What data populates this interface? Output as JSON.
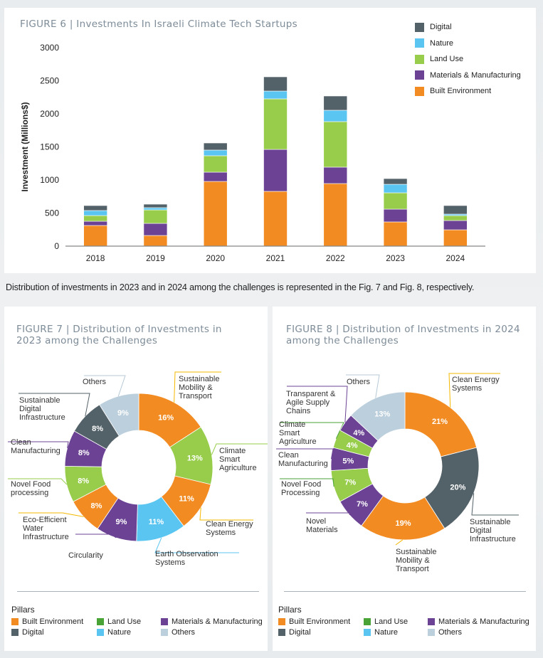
{
  "colors": {
    "digital": "#536168",
    "nature": "#5bc5f2",
    "land_use": "#97cd4a",
    "land_use_legend": "#4aa337",
    "materials": "#6c4394",
    "built": "#f28c22",
    "others": "#bccfdc"
  },
  "caption": "Distribution of investments in 2023 and in 2024 among the challenges is represented in the Fig. 7 and Fig. 8, respectively.",
  "chart_data": [
    {
      "type": "bar",
      "stacked": true,
      "title": "FIGURE  6 |  Investments In Israeli Climate Tech Startups",
      "xlabel": "",
      "ylabel": "Investment (Millions$)",
      "ylim": [
        0,
        3000
      ],
      "yticks": [
        0,
        500,
        1000,
        1500,
        2000,
        2500,
        3000
      ],
      "grid": false,
      "legend_position": "top-right",
      "categories": [
        "2018",
        "2019",
        "2020",
        "2021",
        "2022",
        "2023",
        "2024"
      ],
      "series": [
        {
          "name": "Built Environment",
          "color_key": "built",
          "values": [
            312,
            161,
            978,
            828,
            946,
            366,
            247
          ]
        },
        {
          "name": "Materials & Manufacturing",
          "color_key": "materials",
          "values": [
            64,
            183,
            140,
            634,
            248,
            193,
            140
          ]
        },
        {
          "name": "Land Use",
          "color_key": "land_use",
          "values": [
            86,
            204,
            248,
            764,
            688,
            247,
            75
          ]
        },
        {
          "name": "Nature",
          "color_key": "nature",
          "values": [
            76,
            33,
            86,
            118,
            172,
            129,
            22
          ]
        },
        {
          "name": "Digital",
          "color_key": "digital",
          "values": [
            75,
            53,
            107,
            215,
            215,
            86,
            129
          ]
        }
      ],
      "legend": [
        "Digital",
        "Nature",
        "Land Use",
        "Materials & Manufacturing",
        "Built Environment"
      ]
    },
    {
      "type": "pie",
      "donut": true,
      "title_line1": "FIGURE  7 | Distribution of Investments in",
      "title_line2": "2023 among the Challenges",
      "slices": [
        {
          "label": "Sustainable Mobility & Transport",
          "value": 16,
          "text": "16%",
          "color_key": "built"
        },
        {
          "label": "Climate Smart Agriculture",
          "value": 13,
          "text": "13%",
          "color_key": "land_use"
        },
        {
          "label": "Clean Energy Systems",
          "value": 11,
          "text": "11%",
          "color_key": "built"
        },
        {
          "label": "Earth Observation Systems",
          "value": 11,
          "text": "11%",
          "color_key": "nature"
        },
        {
          "label": "Circularity",
          "value": 9,
          "text": "9%",
          "color_key": "materials"
        },
        {
          "label": "Eco-Efficient Water Infrastructure",
          "value": 8,
          "text": "8%",
          "color_key": "built"
        },
        {
          "label": "Novel Food processing",
          "value": 8,
          "text": "8%",
          "color_key": "land_use"
        },
        {
          "label": "Clean Manufacturing",
          "value": 8,
          "text": "8%",
          "color_key": "materials"
        },
        {
          "label": "Sustainable Digital Infrastructure",
          "value": 8,
          "text": "8%",
          "color_key": "digital"
        },
        {
          "label": "Others",
          "value": 9,
          "text": "9%",
          "color_key": "others"
        }
      ]
    },
    {
      "type": "pie",
      "donut": true,
      "title_line1": "FIGURE  8 | Distribution of Investments in 2024",
      "title_line2": "among the Challenges",
      "slices": [
        {
          "label": "Clean Energy Systems",
          "value": 21,
          "text": "21%",
          "color_key": "built"
        },
        {
          "label": "Sustainable Digital Infrastructure",
          "value": 20,
          "text": "20%",
          "color_key": "digital"
        },
        {
          "label": "Sustainable Mobility & Transport",
          "value": 19,
          "text": "19%",
          "color_key": "built"
        },
        {
          "label": "Novel Materials",
          "value": 7,
          "text": "7%",
          "color_key": "materials"
        },
        {
          "label": "Novel Food Processing",
          "value": 7,
          "text": "7%",
          "color_key": "land_use"
        },
        {
          "label": "Clean Manufacturing",
          "value": 5,
          "text": "5%",
          "color_key": "materials"
        },
        {
          "label": "Climate Smart Agriculture",
          "value": 4,
          "text": "4%",
          "color_key": "land_use"
        },
        {
          "label": "Transparent & Agile Supply Chains",
          "value": 4,
          "text": "4%",
          "color_key": "materials"
        },
        {
          "label": "Others",
          "value": 13,
          "text": "13%",
          "color_key": "others"
        }
      ]
    }
  ],
  "pie_labels": {
    "f7": [
      [
        "Sustainable",
        "Mobility &",
        "Transport"
      ],
      [
        "Climate",
        "Smart",
        "Agriculture"
      ],
      [
        "Clean Energy",
        "Systems"
      ],
      [
        "Earth Observation",
        "Systems"
      ],
      [
        "Circularity"
      ],
      [
        "Eco-Efficient",
        "Water",
        "Infrastructure"
      ],
      [
        "Novel Food",
        "processing"
      ],
      [
        "Clean",
        "Manufacturing"
      ],
      [
        "Sustainable",
        "Digital",
        "Infrastructure"
      ],
      [
        "Others"
      ]
    ],
    "f8": [
      [
        "Clean Energy",
        "Systems"
      ],
      [
        "Sustainable",
        "Digital",
        "Infrastructure"
      ],
      [
        "Sustainable",
        "Mobility &",
        "Transport"
      ],
      [
        "Novel",
        "Materials"
      ],
      [
        "Novel Food",
        "Processing"
      ],
      [
        "Clean",
        "Manufacturing"
      ],
      [
        "Climate",
        "Smart",
        "Agriculture"
      ],
      [
        "Transparent &",
        "Agile Supply",
        "Chains"
      ],
      [
        "Others"
      ]
    ]
  },
  "pillars": {
    "title": "Pillars",
    "items": [
      {
        "label": "Built Environment",
        "color_key": "built"
      },
      {
        "label": "Land Use",
        "color_key": "land_use_legend"
      },
      {
        "label": "Materials & Manufacturing",
        "color_key": "materials"
      },
      {
        "label": "Digital",
        "color_key": "digital"
      },
      {
        "label": "Nature",
        "color_key": "nature"
      },
      {
        "label": "Others",
        "color_key": "others"
      }
    ]
  }
}
